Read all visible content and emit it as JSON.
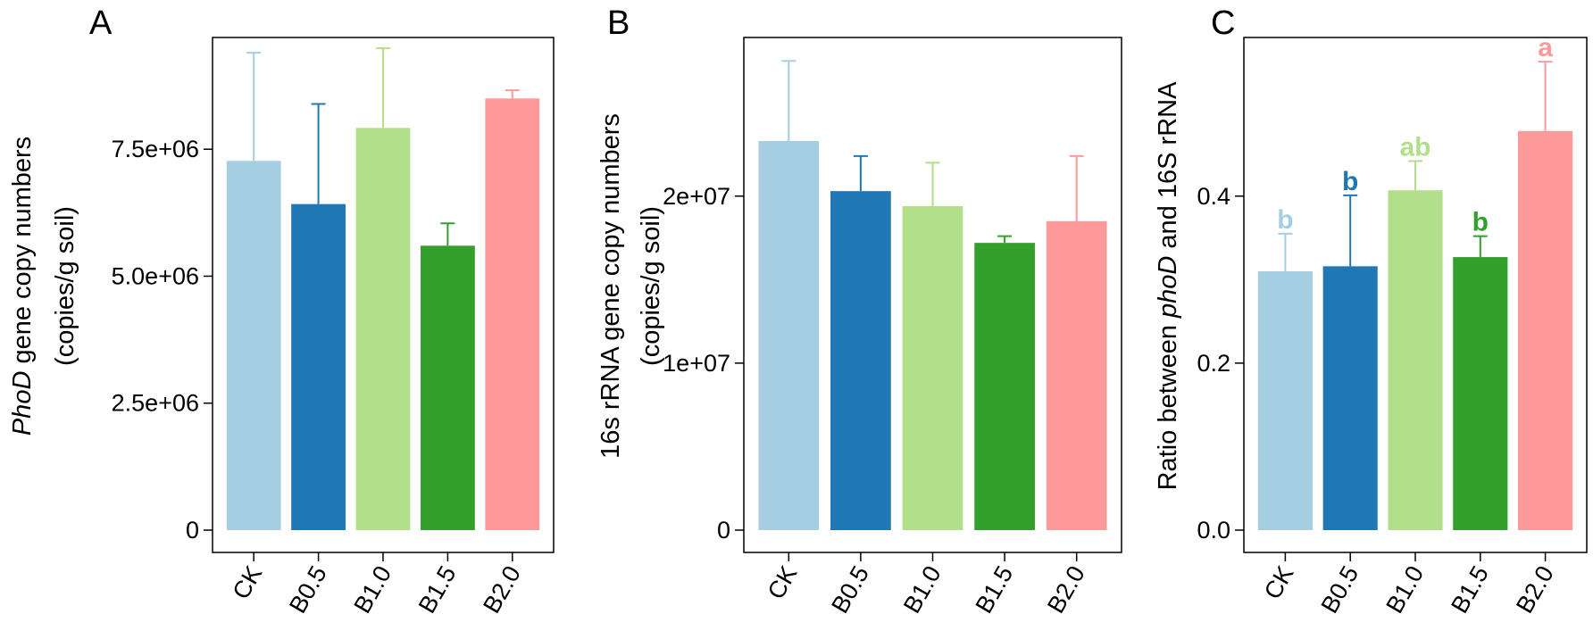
{
  "chart_data": [
    {
      "panel": "A",
      "type": "bar",
      "categories": [
        "CK",
        "B0.5",
        "B1.0",
        "B1.5",
        "B2.0"
      ],
      "values": [
        7270000,
        6420000,
        7920000,
        5600000,
        8500000
      ],
      "errors": [
        2130000,
        1970000,
        1570000,
        440000,
        160000
      ],
      "ylim": [
        0,
        9700000
      ],
      "yticks": [
        0,
        2500000,
        5000000,
        7500000
      ],
      "ytick_labels": [
        "0",
        "2.5e+06",
        "5.0e+06",
        "7.5e+06"
      ],
      "ylabel_italic": "PhoD",
      "ylabel_rest": " gene copy numbers",
      "ylabel_line2": "(copies/g soil)",
      "xlabel": "",
      "letters": []
    },
    {
      "panel": "B",
      "type": "bar",
      "categories": [
        "CK",
        "B0.5",
        "B1.0",
        "B1.5",
        "B2.0"
      ],
      "values": [
        23300000,
        20300000,
        19400000,
        17200000,
        18500000
      ],
      "errors": [
        4800000,
        2100000,
        2600000,
        400000,
        3900000
      ],
      "ylim": [
        0,
        29500000
      ],
      "yticks": [
        0,
        10000000,
        20000000
      ],
      "ytick_labels": [
        "0",
        "1e+07",
        "2e+07"
      ],
      "ylabel_italic": "",
      "ylabel_rest": "16s rRNA gene copy numbers",
      "ylabel_line2": "(copies/g soil)",
      "xlabel": "",
      "letters": []
    },
    {
      "panel": "C",
      "type": "bar",
      "categories": [
        "CK",
        "B0.5",
        "B1.0",
        "B1.5",
        "B2.0"
      ],
      "values": [
        0.31,
        0.316,
        0.407,
        0.327,
        0.478
      ],
      "errors": [
        0.045,
        0.085,
        0.035,
        0.025,
        0.083
      ],
      "ylim": [
        0,
        0.59
      ],
      "yticks": [
        0,
        0.2,
        0.4
      ],
      "ytick_labels": [
        "0.0",
        "0.2",
        "0.4"
      ],
      "ylabel_pre": "Ratio between ",
      "ylabel_italic": "phoD",
      "ylabel_post": " and 16S rRNA",
      "xlabel": "",
      "letters": [
        "b",
        "b",
        "ab",
        "b",
        "a"
      ]
    }
  ],
  "series_colors": [
    "#a6cee3",
    "#1f78b4",
    "#b2df8a",
    "#33a02c",
    "#fb9a99"
  ],
  "error_colors": [
    "#a6cee3",
    "#1f78b4",
    "#b2df8a",
    "#33a02c",
    "#fb9a99"
  ]
}
